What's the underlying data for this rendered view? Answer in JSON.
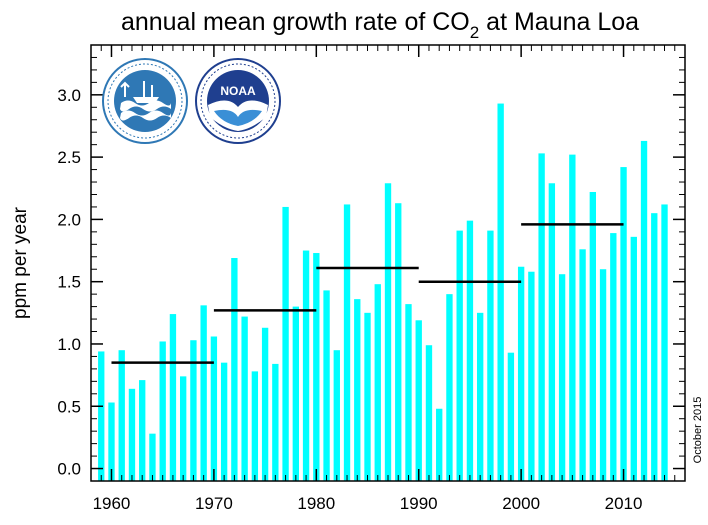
{
  "chart_data": {
    "type": "bar",
    "title": {
      "main": "annual mean growth rate of CO",
      "subscript": "2",
      "suffix": " at Mauna Loa"
    },
    "xlabel": "",
    "ylabel": "ppm per year",
    "date_stamp": "October 2015",
    "bar_color": "#00ffff",
    "x": [
      1959,
      1960,
      1961,
      1962,
      1963,
      1964,
      1965,
      1966,
      1967,
      1968,
      1969,
      1970,
      1971,
      1972,
      1973,
      1974,
      1975,
      1976,
      1977,
      1978,
      1979,
      1980,
      1981,
      1982,
      1983,
      1984,
      1985,
      1986,
      1987,
      1988,
      1989,
      1990,
      1991,
      1992,
      1993,
      1994,
      1995,
      1996,
      1997,
      1998,
      1999,
      2000,
      2001,
      2002,
      2003,
      2004,
      2005,
      2006,
      2007,
      2008,
      2009,
      2010,
      2011,
      2012,
      2013,
      2014
    ],
    "values": [
      0.94,
      0.53,
      0.95,
      0.64,
      0.71,
      0.28,
      1.02,
      1.24,
      0.74,
      1.03,
      1.31,
      1.06,
      0.85,
      1.69,
      1.22,
      0.78,
      1.13,
      0.84,
      2.1,
      1.3,
      1.75,
      1.73,
      1.43,
      0.95,
      2.12,
      1.36,
      1.25,
      1.48,
      2.29,
      2.13,
      1.32,
      1.19,
      0.99,
      0.48,
      1.4,
      1.91,
      1.99,
      1.25,
      1.91,
      2.93,
      0.93,
      1.62,
      1.58,
      2.53,
      2.29,
      1.56,
      2.52,
      1.76,
      2.22,
      1.6,
      1.89,
      2.42,
      1.86,
      2.63,
      2.05,
      2.12
    ],
    "decadal_means": [
      {
        "start": 1960,
        "end": 1970,
        "value": 0.85
      },
      {
        "start": 1970,
        "end": 1980,
        "value": 1.27
      },
      {
        "start": 1980,
        "end": 1990,
        "value": 1.61
      },
      {
        "start": 1990,
        "end": 2000,
        "value": 1.5
      },
      {
        "start": 2000,
        "end": 2010,
        "value": 1.96
      }
    ],
    "xlim": [
      1958,
      2016
    ],
    "ylim": [
      -0.1,
      3.4
    ],
    "xticks": [
      1960,
      1970,
      1980,
      1990,
      2000,
      2010
    ],
    "yticks": [
      0.0,
      0.5,
      1.0,
      1.5,
      2.0,
      2.5,
      3.0
    ],
    "ytick_labels": [
      "0.0",
      "0.5",
      "1.0",
      "1.5",
      "2.0",
      "2.5",
      "3.0"
    ],
    "grid": false,
    "logos": [
      {
        "name": "scripps-logo",
        "text": "SCRIPPS INSTITUTION OF OCEANOGRAPHY · UCSD"
      },
      {
        "name": "noaa-logo",
        "text": "NOAA",
        "ring_text": "NATIONAL OCEANIC AND ATMOSPHERIC ADMINISTRATION · U.S. DEPARTMENT OF COMMERCE"
      }
    ]
  }
}
